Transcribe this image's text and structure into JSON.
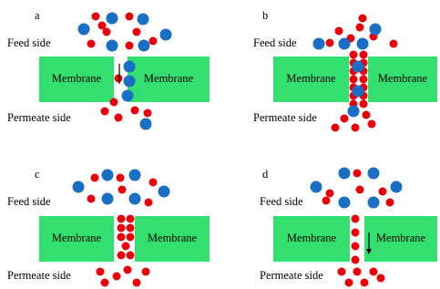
{
  "panels": [
    {
      "label": "a",
      "feed": "Feed side",
      "membranes": [
        "Membrane",
        "Membrane"
      ],
      "permeate": "Permeate side"
    },
    {
      "label": "b",
      "feed": "Feed side",
      "membranes": [
        "Membrane",
        "Membrane"
      ],
      "permeate": "Permeate side"
    },
    {
      "label": "c",
      "feed": "Feed side",
      "membranes": [
        "Membrane",
        "Membrane"
      ],
      "permeate": "Permeate side"
    },
    {
      "label": "d",
      "feed": "Feed side",
      "membranes": [
        "Membrane",
        "Membrane"
      ],
      "permeate": "Permeate side"
    }
  ]
}
